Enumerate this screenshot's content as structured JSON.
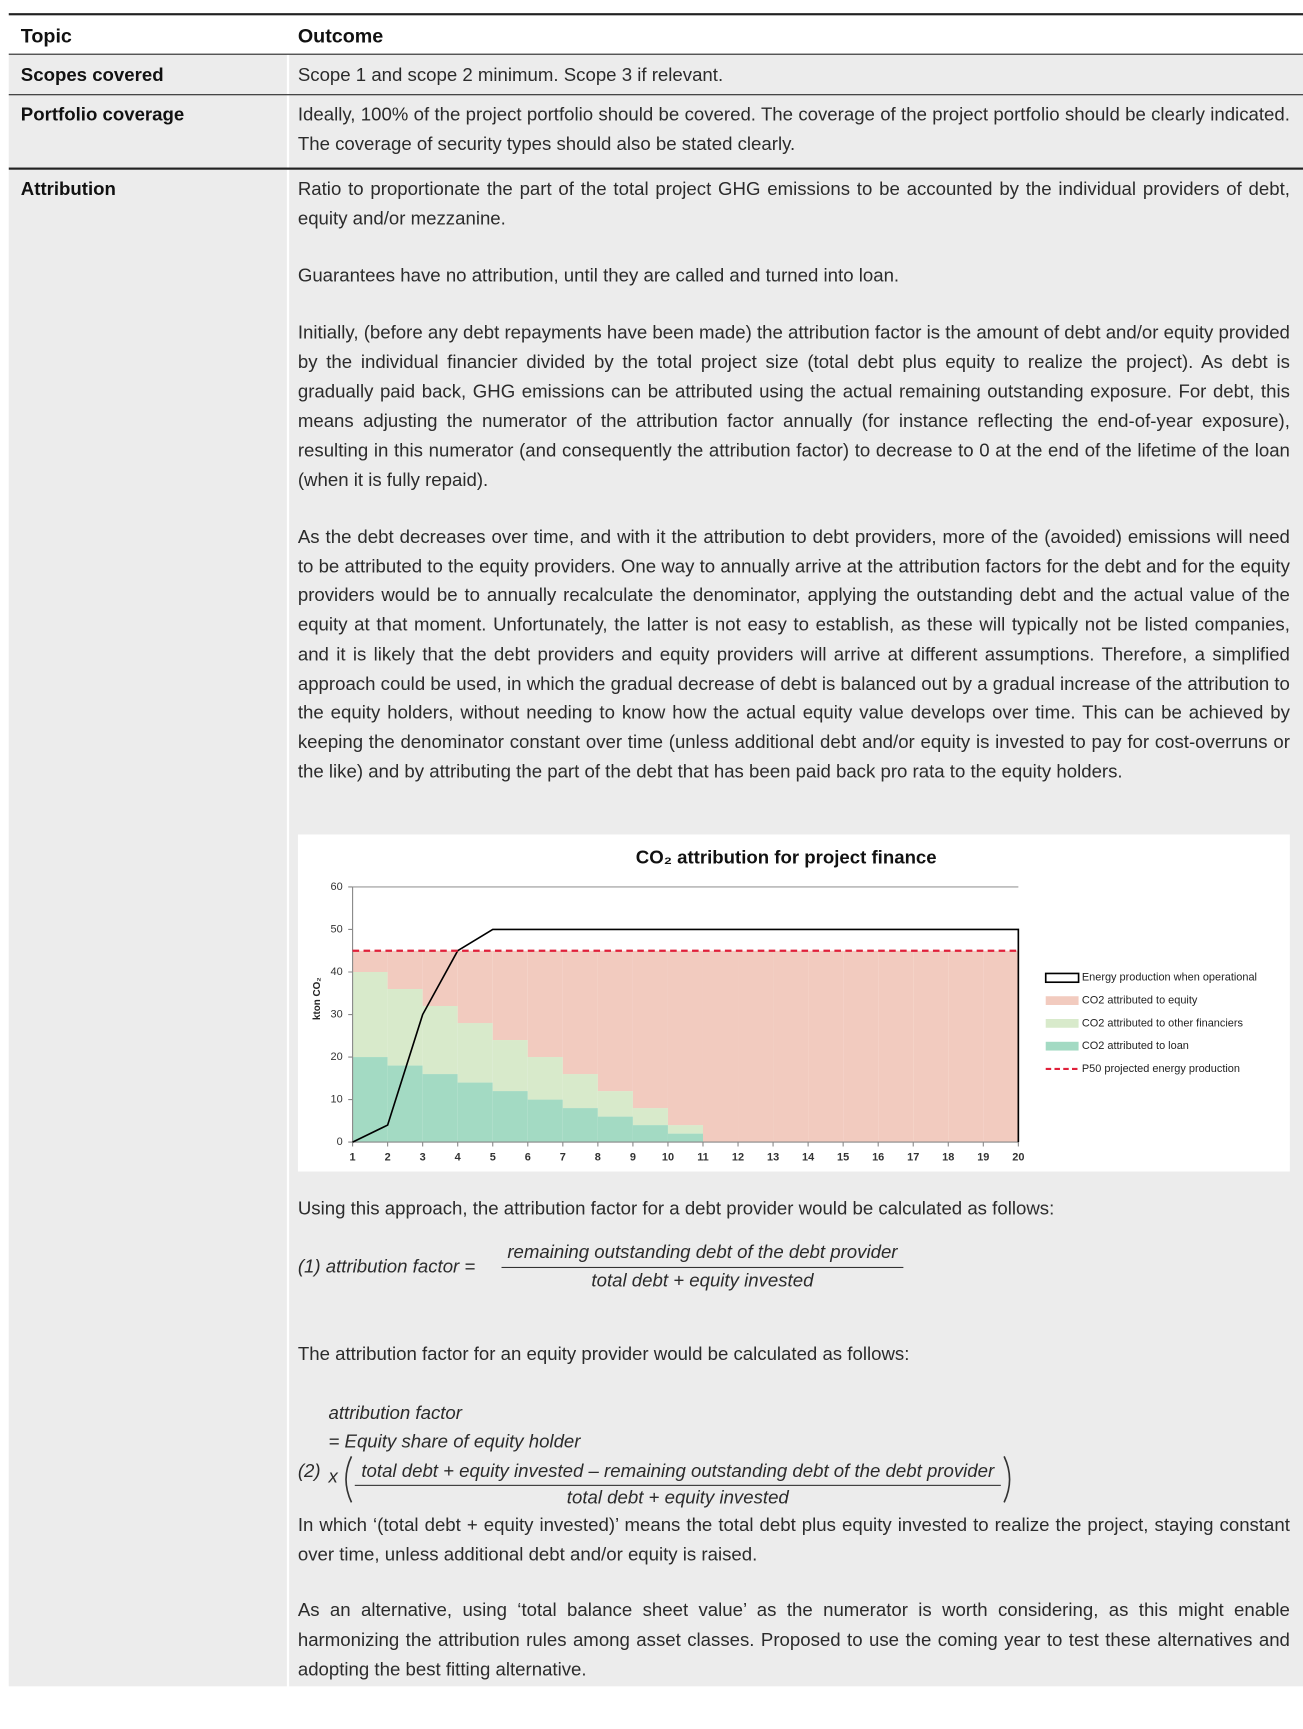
{
  "table": {
    "header": [
      "Topic",
      "Outcome"
    ],
    "rows": [
      [
        "Scopes covered",
        "Scope 1 and scope 2 minimum. Scope 3 if relevant."
      ],
      [
        "Portfolio coverage",
        "Ideally, 100% of the project portfolio should be covered. The coverage of the project portfolio should be clearly indicated. The coverage of security types should also be stated clearly."
      ]
    ]
  },
  "attribution": {
    "topic": "Attribution",
    "paragraphs": [
      "Ratio to proportionate the part of the total project GHG emissions to be accounted by the individual providers of debt, equity and/or mezzanine.",
      "Guarantees have no attribution, until they are called and turned into loan.",
      "Initially, (before any debt repayments have been made) the attribution factor is the amount of debt and/or equity provided by the individual financier divided by the total project size (total debt plus equity to realize the project). As debt is gradually paid back, GHG emissions can be attributed using the actual remaining outstanding exposure. For debt, this means adjusting the numerator of the attribution factor annually (for instance reflecting the end-of-year exposure), resulting in this numerator (and consequently the attribution factor) to decrease to 0 at the end of the lifetime of the loan (when it is fully repaid).",
      "As the debt decreases over time, and with it the attribution to debt providers, more of the (avoided) emissions will need to be attributed to the equity providers. One way to annually arrive at the attribution factors for the debt and for the equity providers would be to annually recalculate the denominator, applying the outstanding debt and the actual value of the equity at that moment. Unfortunately, the latter is not easy to establish, as these will typically not be listed companies, and it is likely that the debt providers and equity providers will arrive at different assumptions. Therefore, a simplified approach could be used, in which the gradual decrease of debt is balanced out by a gradual increase of the attribution to the equity holders, without needing to know how the actual equity value develops over time. This can be achieved by keeping the denominator constant over time (unless additional debt and/or equity is invested to pay for cost-overruns or the like) and by attributing the part of the debt that has been paid back pro rata to the equity holders."
    ],
    "intro_1": "Using this approach, the attribution factor for a debt provider would be calculated as follows:",
    "formula_1": {
      "label": "(1)  attribution factor =",
      "numerator": "remaining outstanding debt of the debt provider",
      "denominator": "total debt + equity invested"
    },
    "intro_2": "The attribution factor for an equity provider would be calculated as follows:",
    "formula_2": {
      "line_1": "attribution factor",
      "line_2": "= Equity share of equity holder",
      "label": "(2)",
      "times": "x",
      "numerator": "total debt + equity invested – remaining outstanding debt of the debt provider",
      "denominator": "total debt + equity invested"
    },
    "closing": [
      "In which ‘(total debt + equity invested)’ means the total debt plus equity invested to realize the project, staying constant over time, unless additional debt and/or equity is raised.",
      "As an alternative, using ‘total balance sheet value’ as the numerator is worth considering, as this might enable harmonizing the attribution rules among asset classes. Proposed to use the coming year to test these alternatives and adopting the best fitting alternative."
    ]
  },
  "chart_data": {
    "type": "stacked_step_area",
    "title": "CO₂ attribution for project finance",
    "y_label": "kton CO₂",
    "x": [
      1,
      2,
      3,
      4,
      5,
      6,
      7,
      8,
      9,
      10,
      11,
      12,
      13,
      14,
      15,
      16,
      17,
      18,
      19,
      20
    ],
    "series": [
      {
        "name": "CO2 attributed to equity",
        "color": "#f2cbbf",
        "values": [
          5,
          9,
          13,
          17,
          21,
          25,
          29,
          33,
          37,
          41,
          45,
          45,
          45,
          45,
          45,
          45,
          45,
          45,
          45,
          45
        ]
      },
      {
        "name": "CO2 attributed to other financiers",
        "color": "#d8eacb",
        "values": [
          20,
          18,
          16,
          14,
          12,
          10,
          8,
          6,
          4,
          2,
          0,
          0,
          0,
          0,
          0,
          0,
          0,
          0,
          0,
          0
        ]
      },
      {
        "name": "CO2 attributed to loan",
        "color": "#a3dac3",
        "values": [
          20,
          18,
          16,
          14,
          12,
          10,
          8,
          6,
          4,
          2,
          0,
          0,
          0,
          0,
          0,
          0,
          0,
          0,
          0,
          0
        ]
      }
    ],
    "energy": {
      "name": "Energy production when operational",
      "color": "#000000",
      "x": [
        1,
        2,
        3,
        4,
        5,
        20,
        20
      ],
      "values": [
        0,
        4,
        30,
        45,
        50,
        50,
        0
      ]
    },
    "p50": {
      "name": "P50 projected energy production",
      "color": "#e0203a",
      "value": 45
    },
    "xlim": [
      1,
      20
    ],
    "xticks": [
      1,
      2,
      3,
      4,
      5,
      6,
      7,
      8,
      9,
      10,
      11,
      12,
      13,
      14,
      15,
      16,
      17,
      18,
      19,
      20
    ],
    "ylim": [
      0,
      60
    ],
    "yticks": [
      0,
      10,
      20,
      30,
      40,
      50,
      60
    ],
    "grid": false,
    "legend": "right"
  }
}
